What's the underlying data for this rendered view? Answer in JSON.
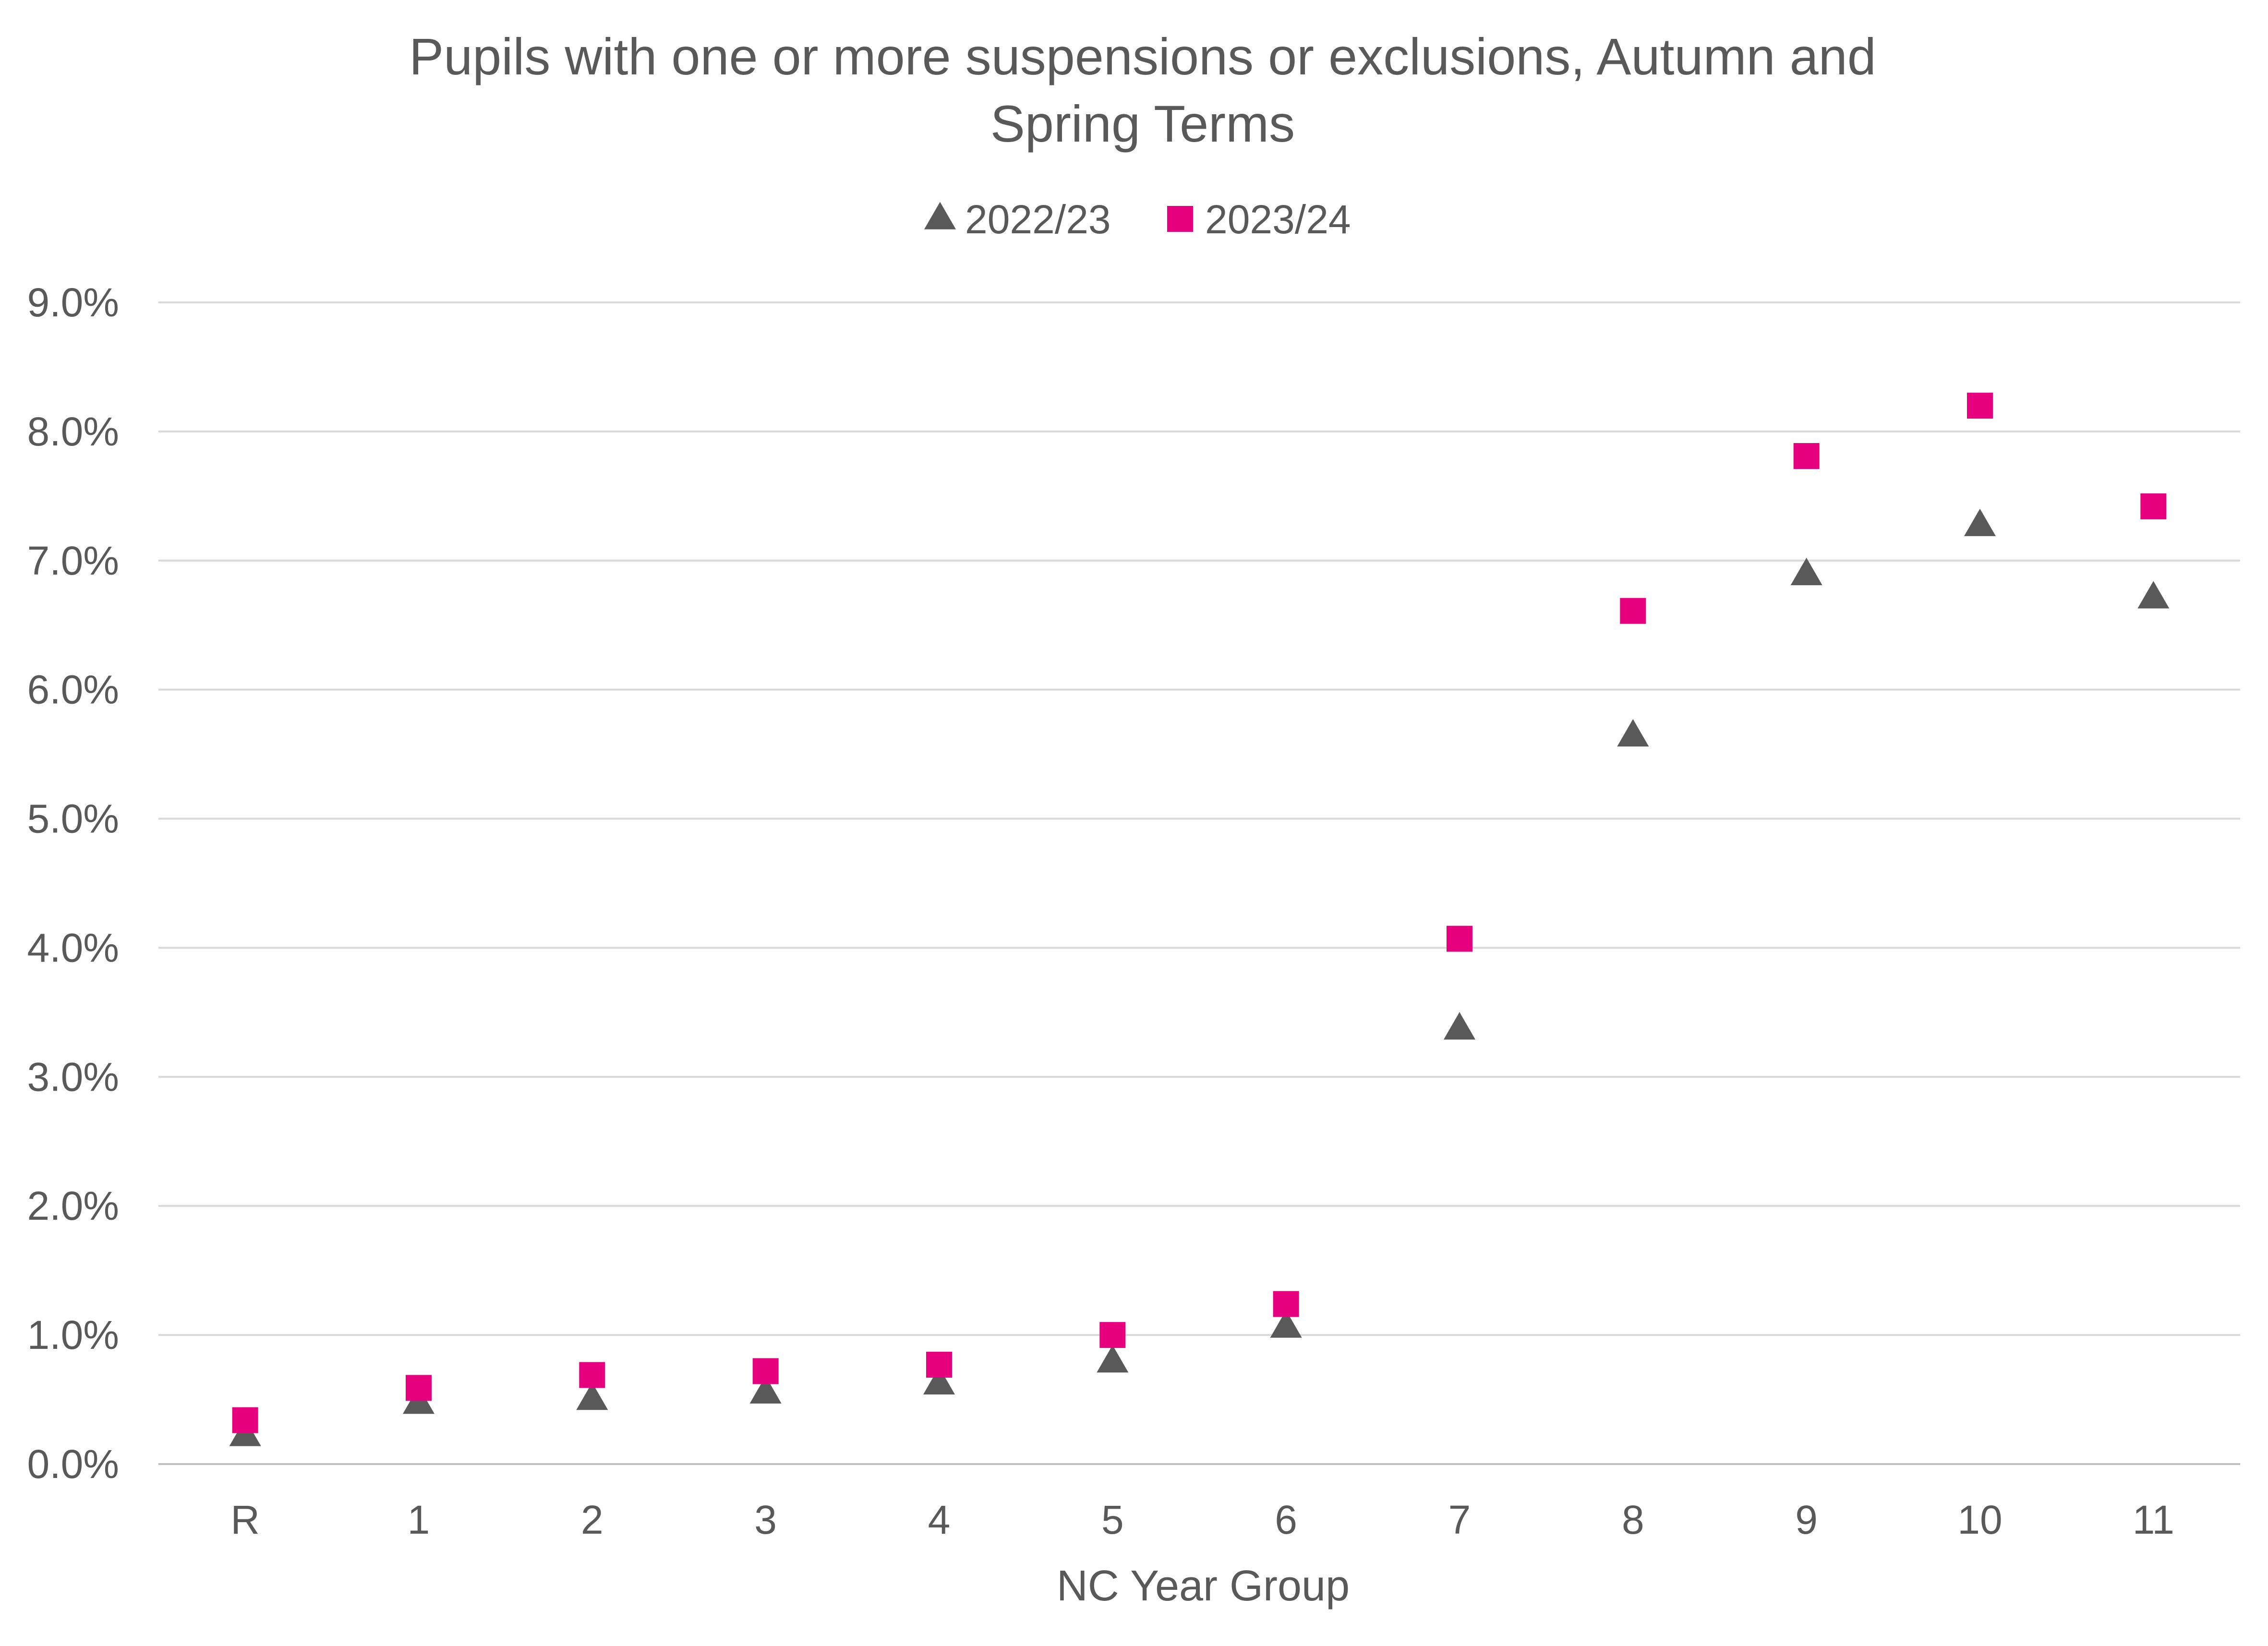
{
  "chart_data": {
    "type": "scatter",
    "title": "Pupils with one or more suspensions or exclusions, Autumn and Spring Terms",
    "title_lines": [
      "Pupils with one or more suspensions or exclusions, Autumn and",
      "Spring Terms"
    ],
    "xlabel": "NC Year Group",
    "ylabel": "",
    "categories": [
      "R",
      "1",
      "2",
      "3",
      "4",
      "5",
      "6",
      "7",
      "8",
      "9",
      "10",
      "11"
    ],
    "ylim": [
      0,
      9.0
    ],
    "y_ticks": [
      0,
      1,
      2,
      3,
      4,
      5,
      6,
      7,
      8,
      9
    ],
    "y_tick_labels": [
      "0.0%",
      "1.0%",
      "2.0%",
      "3.0%",
      "4.0%",
      "5.0%",
      "6.0%",
      "7.0%",
      "8.0%",
      "9.0%"
    ],
    "y_unit": "%",
    "grid": "horizontal",
    "legend_position": "top",
    "series": [
      {
        "name": "2022/23",
        "marker": "triangle",
        "color": "#595959",
        "values": [
          0.22,
          0.47,
          0.5,
          0.55,
          0.62,
          0.79,
          1.06,
          3.37,
          5.64,
          6.89,
          7.27,
          6.71
        ]
      },
      {
        "name": "2023/24",
        "marker": "square",
        "color": "#E6007E",
        "values": [
          0.34,
          0.59,
          0.69,
          0.72,
          0.77,
          1.0,
          1.24,
          4.07,
          6.61,
          7.81,
          8.2,
          7.42
        ]
      }
    ]
  }
}
